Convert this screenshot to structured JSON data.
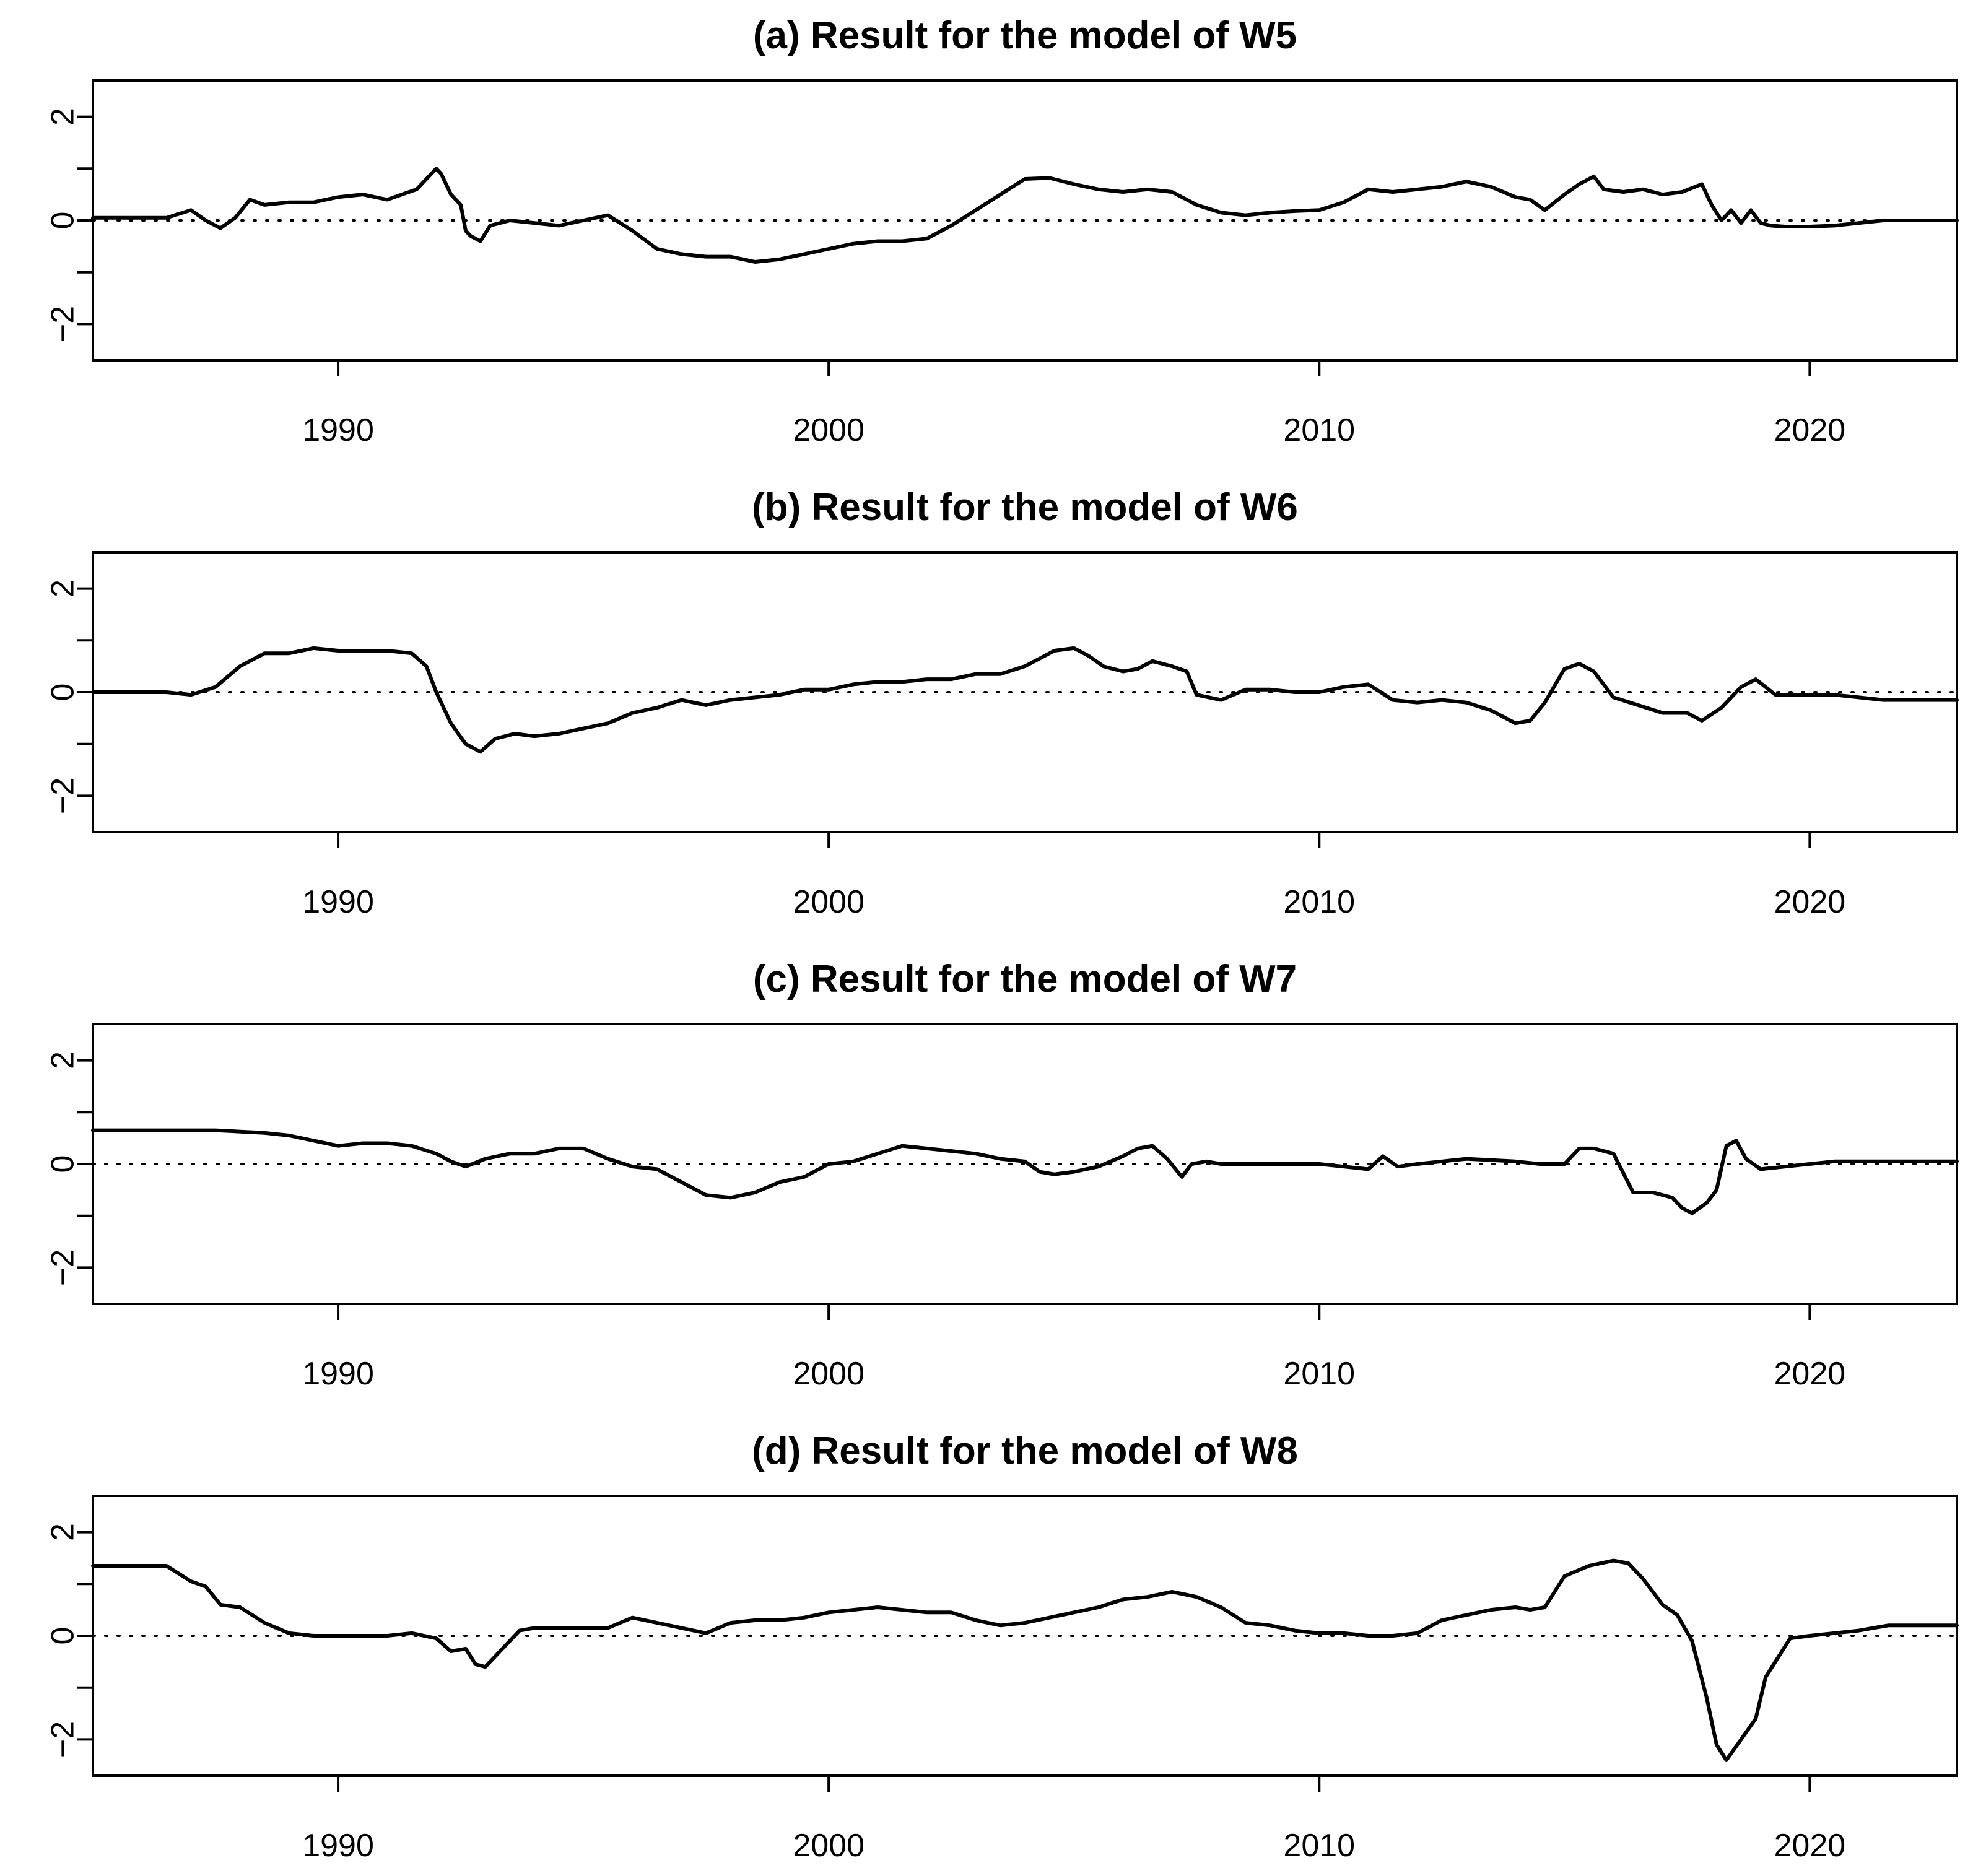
{
  "chart_data": [
    {
      "type": "line",
      "title": "(a) Result for the model of W5",
      "xlim": [
        1985,
        2023
      ],
      "ylim": [
        -2.7,
        2.7
      ],
      "x_ticks": [
        1990,
        2000,
        2010,
        2020
      ],
      "y_ticks": [
        -2,
        0,
        2
      ],
      "y_minor_ticks": [
        -1,
        1
      ],
      "reference_line": {
        "y": 0,
        "style": "dotted"
      },
      "series": [
        {
          "x": [
            1985.0,
            1986.5,
            1987.0,
            1987.3,
            1987.6,
            1987.9,
            1988.2,
            1988.5,
            1989.0,
            1989.5,
            1990.0,
            1990.5,
            1991.0,
            1991.3,
            1991.6,
            1991.8,
            1992.0,
            1992.1,
            1992.3,
            1992.5,
            1992.6,
            1992.7,
            1992.9,
            1993.1,
            1993.5,
            1994.0,
            1994.5,
            1995.0,
            1995.5,
            1996.0,
            1996.5,
            1997.0,
            1997.5,
            1998.0,
            1998.5,
            1999.0,
            1999.5,
            2000.0,
            2000.5,
            2001.0,
            2001.5,
            2002.0,
            2002.5,
            2003.0,
            2003.5,
            2004.0,
            2004.5,
            2005.0,
            2005.5,
            2006.0,
            2006.5,
            2007.0,
            2007.5,
            2008.0,
            2008.5,
            2009.0,
            2009.5,
            2010.0,
            2010.5,
            2011.0,
            2011.5,
            2012.0,
            2012.5,
            2013.0,
            2013.5,
            2014.0,
            2014.3,
            2014.6,
            2015.0,
            2015.3,
            2015.6,
            2015.8,
            2016.2,
            2016.6,
            2017.0,
            2017.4,
            2017.8,
            2018.0,
            2018.2,
            2018.4,
            2018.6,
            2018.8,
            2019.0,
            2019.2,
            2019.5,
            2020.0,
            2020.5,
            2021.0,
            2021.5,
            2022.0,
            2023.0
          ],
          "y": [
            0.05,
            0.05,
            0.2,
            0.0,
            -0.15,
            0.05,
            0.4,
            0.3,
            0.35,
            0.35,
            0.45,
            0.5,
            0.4,
            0.5,
            0.6,
            0.8,
            1.0,
            0.9,
            0.5,
            0.3,
            -0.2,
            -0.3,
            -0.4,
            -0.1,
            0.0,
            -0.05,
            -0.1,
            0.0,
            0.1,
            -0.2,
            -0.55,
            -0.65,
            -0.7,
            -0.7,
            -0.8,
            -0.75,
            -0.65,
            -0.55,
            -0.45,
            -0.4,
            -0.4,
            -0.35,
            -0.1,
            0.2,
            0.5,
            0.8,
            0.82,
            0.7,
            0.6,
            0.55,
            0.6,
            0.55,
            0.3,
            0.15,
            0.1,
            0.15,
            0.18,
            0.2,
            0.35,
            0.6,
            0.55,
            0.6,
            0.65,
            0.75,
            0.65,
            0.45,
            0.4,
            0.2,
            0.5,
            0.7,
            0.85,
            0.6,
            0.55,
            0.6,
            0.5,
            0.55,
            0.7,
            0.3,
            0.0,
            0.2,
            -0.05,
            0.2,
            -0.05,
            -0.1,
            -0.12,
            -0.12,
            -0.1,
            -0.05,
            0.0,
            0.0,
            0.0
          ]
        }
      ]
    },
    {
      "type": "line",
      "title": "(b) Result for the model of W6",
      "xlim": [
        1985,
        2023
      ],
      "ylim": [
        -2.7,
        2.7
      ],
      "x_ticks": [
        1990,
        2000,
        2010,
        2020
      ],
      "y_ticks": [
        -2,
        0,
        2
      ],
      "y_minor_ticks": [
        -1,
        1
      ],
      "reference_line": {
        "y": 0,
        "style": "dotted"
      },
      "series": [
        {
          "x": [
            1985.0,
            1986.5,
            1987.0,
            1987.5,
            1988.0,
            1988.5,
            1989.0,
            1989.5,
            1990.0,
            1990.5,
            1991.0,
            1991.5,
            1991.8,
            1992.0,
            1992.3,
            1992.6,
            1992.9,
            1993.2,
            1993.6,
            1994.0,
            1994.5,
            1995.0,
            1995.5,
            1996.0,
            1996.5,
            1997.0,
            1997.5,
            1998.0,
            1998.5,
            1999.0,
            1999.5,
            2000.0,
            2000.5,
            2001.0,
            2001.5,
            2002.0,
            2002.5,
            2003.0,
            2003.5,
            2004.0,
            2004.3,
            2004.6,
            2005.0,
            2005.3,
            2005.6,
            2006.0,
            2006.3,
            2006.6,
            2007.0,
            2007.3,
            2007.5,
            2008.0,
            2008.5,
            2009.0,
            2009.5,
            2010.0,
            2010.5,
            2011.0,
            2011.5,
            2012.0,
            2012.5,
            2013.0,
            2013.5,
            2014.0,
            2014.3,
            2014.6,
            2015.0,
            2015.3,
            2015.6,
            2016.0,
            2016.5,
            2017.0,
            2017.5,
            2017.8,
            2018.2,
            2018.6,
            2018.9,
            2019.3,
            2019.8,
            2020.5,
            2021.0,
            2021.5,
            2023.0
          ],
          "y": [
            0.0,
            0.0,
            -0.05,
            0.1,
            0.5,
            0.75,
            0.75,
            0.85,
            0.8,
            0.8,
            0.8,
            0.75,
            0.5,
            0.0,
            -0.6,
            -1.0,
            -1.15,
            -0.9,
            -0.8,
            -0.85,
            -0.8,
            -0.7,
            -0.6,
            -0.4,
            -0.3,
            -0.15,
            -0.25,
            -0.15,
            -0.1,
            -0.05,
            0.05,
            0.05,
            0.15,
            0.2,
            0.2,
            0.25,
            0.25,
            0.35,
            0.35,
            0.5,
            0.65,
            0.8,
            0.85,
            0.7,
            0.5,
            0.4,
            0.45,
            0.6,
            0.5,
            0.4,
            -0.05,
            -0.15,
            0.05,
            0.05,
            0.0,
            0.0,
            0.1,
            0.15,
            -0.15,
            -0.2,
            -0.15,
            -0.2,
            -0.35,
            -0.6,
            -0.55,
            -0.2,
            0.45,
            0.55,
            0.4,
            -0.1,
            -0.25,
            -0.4,
            -0.4,
            -0.55,
            -0.3,
            0.1,
            0.25,
            -0.05,
            -0.05,
            -0.05,
            -0.1,
            -0.15,
            -0.15
          ]
        }
      ]
    },
    {
      "type": "line",
      "title": "(c) Result for the model of W7",
      "xlim": [
        1985,
        2023
      ],
      "ylim": [
        -2.7,
        2.7
      ],
      "x_ticks": [
        1990,
        2000,
        2010,
        2020
      ],
      "y_ticks": [
        -2,
        0,
        2
      ],
      "y_minor_ticks": [
        -1,
        1
      ],
      "reference_line": {
        "y": 0,
        "style": "dotted"
      },
      "series": [
        {
          "x": [
            1985.0,
            1987.5,
            1988.5,
            1989.0,
            1989.5,
            1990.0,
            1990.5,
            1991.0,
            1991.5,
            1992.0,
            1992.3,
            1992.6,
            1993.0,
            1993.5,
            1994.0,
            1994.5,
            1995.0,
            1995.5,
            1996.0,
            1996.5,
            1997.0,
            1997.5,
            1998.0,
            1998.5,
            1999.0,
            1999.5,
            2000.0,
            2000.5,
            2001.0,
            2001.5,
            2002.0,
            2002.5,
            2003.0,
            2003.5,
            2004.0,
            2004.3,
            2004.6,
            2005.0,
            2005.5,
            2006.0,
            2006.3,
            2006.6,
            2006.9,
            2007.2,
            2007.4,
            2007.7,
            2008.0,
            2009.0,
            2010.0,
            2010.5,
            2011.0,
            2011.3,
            2011.6,
            2012.0,
            2012.5,
            2013.0,
            2014.0,
            2014.5,
            2015.0,
            2015.3,
            2015.6,
            2016.0,
            2016.4,
            2016.8,
            2017.2,
            2017.4,
            2017.6,
            2017.9,
            2018.1,
            2018.3,
            2018.5,
            2018.7,
            2019.0,
            2019.5,
            2020.0,
            2020.5,
            2021.0,
            2022.0,
            2023.0
          ],
          "y": [
            0.65,
            0.65,
            0.6,
            0.55,
            0.45,
            0.35,
            0.4,
            0.4,
            0.35,
            0.2,
            0.05,
            -0.05,
            0.1,
            0.2,
            0.2,
            0.3,
            0.3,
            0.1,
            -0.05,
            -0.1,
            -0.35,
            -0.6,
            -0.65,
            -0.55,
            -0.35,
            -0.25,
            0.0,
            0.05,
            0.2,
            0.35,
            0.3,
            0.25,
            0.2,
            0.1,
            0.05,
            -0.15,
            -0.2,
            -0.15,
            -0.05,
            0.15,
            0.3,
            0.35,
            0.1,
            -0.25,
            0.0,
            0.05,
            0.0,
            0.0,
            0.0,
            -0.05,
            -0.1,
            0.15,
            -0.05,
            0.0,
            0.05,
            0.1,
            0.05,
            0.0,
            0.0,
            0.3,
            0.3,
            0.2,
            -0.55,
            -0.55,
            -0.65,
            -0.85,
            -0.95,
            -0.75,
            -0.5,
            0.35,
            0.45,
            0.1,
            -0.1,
            -0.05,
            0.0,
            0.05,
            0.05,
            0.05,
            0.05
          ]
        }
      ]
    },
    {
      "type": "line",
      "title": "(d) Result for the model of W8",
      "xlim": [
        1985,
        2023
      ],
      "ylim": [
        -2.7,
        2.7
      ],
      "x_ticks": [
        1990,
        2000,
        2010,
        2020
      ],
      "y_ticks": [
        -2,
        0,
        2
      ],
      "y_minor_ticks": [
        -1,
        1
      ],
      "reference_line": {
        "y": 0,
        "style": "dotted"
      },
      "series": [
        {
          "x": [
            1985.0,
            1986.5,
            1987.0,
            1987.3,
            1987.6,
            1988.0,
            1988.5,
            1989.0,
            1989.5,
            1990.0,
            1990.5,
            1991.0,
            1991.5,
            1992.0,
            1992.3,
            1992.6,
            1992.8,
            1993.0,
            1993.3,
            1993.7,
            1994.0,
            1994.5,
            1995.0,
            1995.5,
            1996.0,
            1996.5,
            1997.0,
            1997.5,
            1998.0,
            1998.5,
            1999.0,
            1999.5,
            2000.0,
            2000.5,
            2001.0,
            2001.5,
            2002.0,
            2002.5,
            2003.0,
            2003.5,
            2004.0,
            2004.5,
            2005.0,
            2005.5,
            2006.0,
            2006.5,
            2007.0,
            2007.5,
            2008.0,
            2008.5,
            2009.0,
            2009.5,
            2010.0,
            2010.5,
            2011.0,
            2011.5,
            2012.0,
            2012.5,
            2013.0,
            2013.5,
            2014.0,
            2014.3,
            2014.6,
            2015.0,
            2015.5,
            2016.0,
            2016.3,
            2016.6,
            2017.0,
            2017.3,
            2017.6,
            2017.9,
            2018.1,
            2018.3,
            2018.6,
            2018.9,
            2019.1,
            2019.3,
            2019.6,
            2020.0,
            2020.5,
            2021.0,
            2021.3,
            2021.6,
            2023.0
          ],
          "y": [
            1.35,
            1.35,
            1.05,
            0.95,
            0.6,
            0.55,
            0.25,
            0.05,
            0.0,
            0.0,
            0.0,
            0.0,
            0.05,
            -0.05,
            -0.3,
            -0.25,
            -0.55,
            -0.6,
            -0.3,
            0.1,
            0.15,
            0.15,
            0.15,
            0.15,
            0.35,
            0.25,
            0.15,
            0.05,
            0.25,
            0.3,
            0.3,
            0.35,
            0.45,
            0.5,
            0.55,
            0.5,
            0.45,
            0.45,
            0.3,
            0.2,
            0.25,
            0.35,
            0.45,
            0.55,
            0.7,
            0.75,
            0.85,
            0.75,
            0.55,
            0.25,
            0.2,
            0.1,
            0.05,
            0.05,
            0.0,
            0.0,
            0.05,
            0.3,
            0.4,
            0.5,
            0.55,
            0.5,
            0.55,
            1.15,
            1.35,
            1.45,
            1.4,
            1.1,
            0.6,
            0.4,
            -0.1,
            -1.2,
            -2.1,
            -2.4,
            -2.0,
            -1.6,
            -0.8,
            -0.5,
            -0.05,
            0.0,
            0.05,
            0.1,
            0.15,
            0.2,
            0.2
          ]
        }
      ]
    }
  ]
}
